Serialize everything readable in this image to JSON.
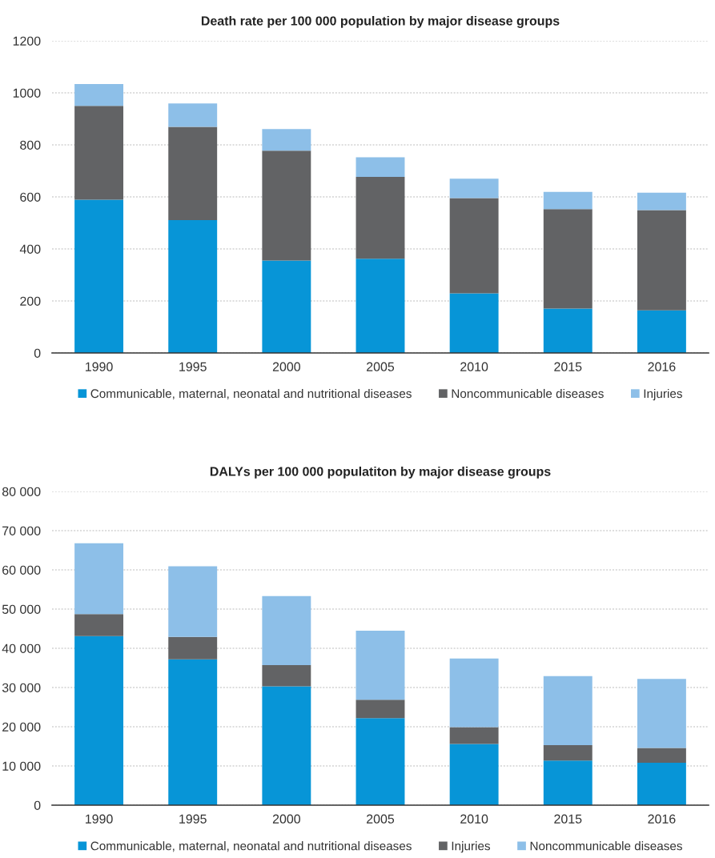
{
  "chart_data": [
    {
      "type": "bar",
      "title": "Death rate per 100 000 population by major disease groups",
      "stacked": true,
      "grid": "y",
      "legend": "bottom",
      "categories": [
        "1990",
        "1995",
        "2000",
        "2005",
        "2010",
        "2015",
        "2016"
      ],
      "ylim": [
        0,
        1200
      ],
      "yticks": [
        0,
        200,
        400,
        600,
        800,
        1000,
        1200
      ],
      "series": [
        {
          "name": "Communicable, maternal, neonatal and nutritional diseases",
          "color": "#0795d7",
          "values": [
            589,
            511,
            355,
            362,
            229,
            171,
            164
          ]
        },
        {
          "name": "Noncommunicable diseases",
          "color": "#626365",
          "values": [
            361,
            358,
            423,
            315,
            366,
            382,
            385
          ]
        },
        {
          "name": "Injuries",
          "color": "#8dbfe8",
          "values": [
            84,
            90,
            83,
            75,
            75,
            66,
            67
          ]
        }
      ]
    },
    {
      "type": "bar",
      "title": "DALYs per 100 000 populatiton by major disease groups",
      "stacked": true,
      "grid": "y",
      "legend": "bottom",
      "categories": [
        "1990",
        "1995",
        "2000",
        "2005",
        "2010",
        "2015",
        "2016"
      ],
      "ylim": [
        0,
        80000
      ],
      "yticks": [
        0,
        {
          "value": 10000,
          "label": "10 000"
        },
        {
          "value": 20000,
          "label": "20 000"
        },
        {
          "value": 30000,
          "label": "30 000"
        },
        {
          "value": 40000,
          "label": "40 000"
        },
        {
          "value": 50000,
          "label": "50 000"
        },
        {
          "value": 60000,
          "label": "60 000"
        },
        {
          "value": 70000,
          "label": "70 000"
        },
        {
          "value": 80000,
          "label": "80 000"
        }
      ],
      "series": [
        {
          "name": "Communicable, maternal, neonatal and nutritional diseases",
          "color": "#0795d7",
          "values": [
            43100,
            37200,
            30300,
            22200,
            15600,
            11400,
            10800
          ]
        },
        {
          "name": "Injuries",
          "color": "#626365",
          "values": [
            5600,
            5700,
            5400,
            4700,
            4300,
            3900,
            3800
          ]
        },
        {
          "name": "Noncommunicable diseases",
          "color": "#8dbfe8",
          "values": [
            18100,
            18000,
            17600,
            17600,
            17500,
            17600,
            17600
          ]
        }
      ]
    }
  ]
}
